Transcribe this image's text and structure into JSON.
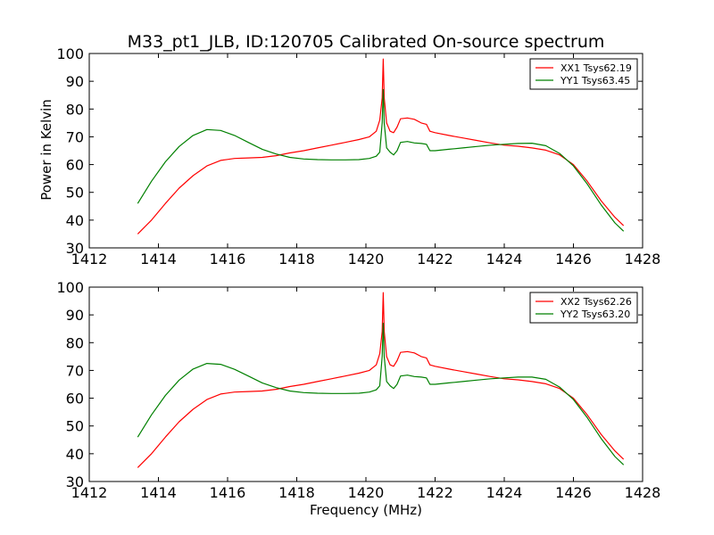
{
  "figure": {
    "title": "M33_pt1_JLB, ID:120705 Calibrated On-source spectrum",
    "ylabel": "Power in Kelvin",
    "xlabel": "Frequency (MHz)"
  },
  "colors": {
    "xx": "#ff0000",
    "yy": "#008000",
    "axes": "#000000",
    "background": "#ffffff"
  },
  "chart_data": [
    {
      "type": "line",
      "title": "M33_pt1_JLB, ID:120705 Calibrated On-source spectrum",
      "xlabel": "",
      "ylabel": "Power in Kelvin",
      "xlim": [
        1412,
        1428
      ],
      "ylim": [
        30,
        100
      ],
      "xticks": [
        1412,
        1414,
        1416,
        1418,
        1420,
        1422,
        1424,
        1426,
        1428
      ],
      "yticks": [
        30,
        40,
        50,
        60,
        70,
        80,
        90,
        100
      ],
      "grid": false,
      "legend_position": "top-right",
      "series": [
        {
          "name": "XX1 Tsys62.19",
          "color": "#ff0000",
          "x": [
            1413.4,
            1413.8,
            1414.2,
            1414.6,
            1415.0,
            1415.4,
            1415.8,
            1416.2,
            1416.6,
            1417.0,
            1417.4,
            1417.8,
            1418.2,
            1418.6,
            1419.0,
            1419.4,
            1419.8,
            1420.1,
            1420.3,
            1420.4,
            1420.47,
            1420.5,
            1420.53,
            1420.6,
            1420.7,
            1420.8,
            1420.9,
            1421.0,
            1421.2,
            1421.4,
            1421.6,
            1421.75,
            1421.85,
            1422.0,
            1422.4,
            1422.8,
            1423.2,
            1423.6,
            1424.0,
            1424.4,
            1424.8,
            1425.2,
            1425.6,
            1426.0,
            1426.4,
            1426.8,
            1427.2,
            1427.45
          ],
          "y": [
            35,
            40,
            46,
            51.5,
            56,
            59.5,
            61.5,
            62.2,
            62.4,
            62.6,
            63.2,
            64.2,
            65.0,
            66.0,
            67.0,
            68.0,
            69.0,
            70.0,
            72.0,
            76.0,
            84.0,
            98.0,
            84.0,
            75.0,
            72.0,
            71.5,
            73.5,
            76.5,
            76.8,
            76.3,
            75.0,
            74.5,
            72.0,
            71.5,
            70.5,
            69.6,
            68.7,
            67.8,
            67.0,
            66.6,
            66.0,
            65.2,
            63.5,
            60.0,
            54.0,
            47.0,
            41.0,
            38.0
          ]
        },
        {
          "name": "YY1 Tsys63.45",
          "color": "#008000",
          "x": [
            1413.4,
            1413.8,
            1414.2,
            1414.6,
            1415.0,
            1415.4,
            1415.8,
            1416.2,
            1416.6,
            1417.0,
            1417.4,
            1417.8,
            1418.2,
            1418.6,
            1419.0,
            1419.4,
            1419.8,
            1420.1,
            1420.3,
            1420.4,
            1420.47,
            1420.5,
            1420.53,
            1420.6,
            1420.7,
            1420.8,
            1420.9,
            1421.0,
            1421.2,
            1421.4,
            1421.6,
            1421.75,
            1421.85,
            1422.0,
            1422.4,
            1422.8,
            1423.2,
            1423.6,
            1424.0,
            1424.4,
            1424.8,
            1425.2,
            1425.6,
            1426.0,
            1426.4,
            1426.8,
            1427.2,
            1427.45
          ],
          "y": [
            46,
            54,
            61,
            66.5,
            70.5,
            72.6,
            72.3,
            70.5,
            68.0,
            65.5,
            63.8,
            62.6,
            62.0,
            61.8,
            61.7,
            61.7,
            61.8,
            62.2,
            63.0,
            64.5,
            75.0,
            87.0,
            75.0,
            66.0,
            64.5,
            63.5,
            65.0,
            68.0,
            68.3,
            67.8,
            67.6,
            67.3,
            65.0,
            65.0,
            65.5,
            66.0,
            66.5,
            67.0,
            67.3,
            67.6,
            67.7,
            66.8,
            64.0,
            59.5,
            53.0,
            45.5,
            39.0,
            36.0
          ]
        }
      ]
    },
    {
      "type": "line",
      "title": "",
      "xlabel": "Frequency (MHz)",
      "ylabel": "",
      "xlim": [
        1412,
        1428
      ],
      "ylim": [
        30,
        100
      ],
      "xticks": [
        1412,
        1414,
        1416,
        1418,
        1420,
        1422,
        1424,
        1426,
        1428
      ],
      "yticks": [
        30,
        40,
        50,
        60,
        70,
        80,
        90,
        100
      ],
      "grid": false,
      "legend_position": "top-right",
      "series": [
        {
          "name": "XX2 Tsys62.26",
          "color": "#ff0000",
          "x": [
            1413.4,
            1413.8,
            1414.2,
            1414.6,
            1415.0,
            1415.4,
            1415.8,
            1416.2,
            1416.6,
            1417.0,
            1417.4,
            1417.8,
            1418.2,
            1418.6,
            1419.0,
            1419.4,
            1419.8,
            1420.1,
            1420.3,
            1420.4,
            1420.47,
            1420.5,
            1420.53,
            1420.6,
            1420.7,
            1420.8,
            1420.9,
            1421.0,
            1421.2,
            1421.4,
            1421.6,
            1421.75,
            1421.85,
            1422.0,
            1422.4,
            1422.8,
            1423.2,
            1423.6,
            1424.0,
            1424.4,
            1424.8,
            1425.2,
            1425.6,
            1426.0,
            1426.4,
            1426.8,
            1427.2,
            1427.45
          ],
          "y": [
            35,
            40,
            46,
            51.5,
            56,
            59.5,
            61.5,
            62.2,
            62.4,
            62.6,
            63.2,
            64.2,
            65.0,
            66.0,
            67.0,
            68.0,
            69.0,
            70.0,
            72.0,
            76.0,
            84.0,
            98.0,
            84.0,
            75.0,
            72.0,
            71.5,
            73.5,
            76.5,
            76.8,
            76.3,
            75.0,
            74.5,
            72.0,
            71.5,
            70.5,
            69.6,
            68.7,
            67.8,
            67.0,
            66.6,
            66.0,
            65.2,
            63.5,
            60.0,
            54.0,
            47.0,
            41.0,
            38.0
          ]
        },
        {
          "name": "YY2 Tsys63.20",
          "color": "#008000",
          "x": [
            1413.4,
            1413.8,
            1414.2,
            1414.6,
            1415.0,
            1415.4,
            1415.8,
            1416.2,
            1416.6,
            1417.0,
            1417.4,
            1417.8,
            1418.2,
            1418.6,
            1419.0,
            1419.4,
            1419.8,
            1420.1,
            1420.3,
            1420.4,
            1420.47,
            1420.5,
            1420.53,
            1420.6,
            1420.7,
            1420.8,
            1420.9,
            1421.0,
            1421.2,
            1421.4,
            1421.6,
            1421.75,
            1421.85,
            1422.0,
            1422.4,
            1422.8,
            1423.2,
            1423.6,
            1424.0,
            1424.4,
            1424.8,
            1425.2,
            1425.6,
            1426.0,
            1426.4,
            1426.8,
            1427.2,
            1427.45
          ],
          "y": [
            46,
            54,
            61,
            66.5,
            70.5,
            72.5,
            72.2,
            70.4,
            68.0,
            65.5,
            63.8,
            62.6,
            62.0,
            61.8,
            61.7,
            61.7,
            61.8,
            62.2,
            63.0,
            64.5,
            75.0,
            87.0,
            75.0,
            66.0,
            64.5,
            63.5,
            65.0,
            68.0,
            68.3,
            67.8,
            67.6,
            67.3,
            65.0,
            65.0,
            65.5,
            66.0,
            66.5,
            67.0,
            67.3,
            67.6,
            67.6,
            66.8,
            64.0,
            59.5,
            53.0,
            45.5,
            39.0,
            36.0
          ]
        }
      ]
    }
  ]
}
